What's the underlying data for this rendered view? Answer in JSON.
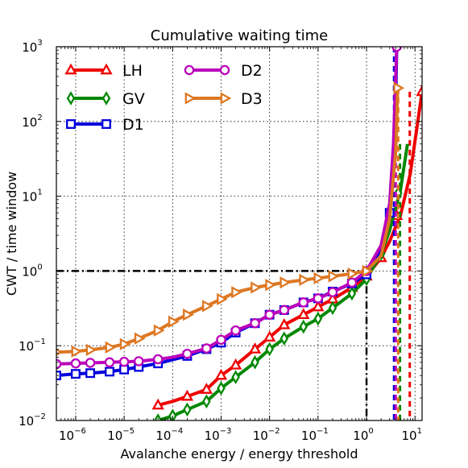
{
  "chart_data": {
    "type": "line",
    "title": "Cumulative waiting time",
    "xlabel": "Avalanche energy / energy threshold",
    "ylabel": "CWT / time window",
    "x_scale": "log",
    "y_scale": "log",
    "xlim": [
      4e-07,
      14
    ],
    "ylim": [
      0.01,
      1000
    ],
    "grid": true,
    "legend_position": "top-left",
    "x_ticks": [
      {
        "value": 1e-06,
        "base": "10",
        "exp": "−6"
      },
      {
        "value": 1e-05,
        "base": "10",
        "exp": "−5"
      },
      {
        "value": 0.0001,
        "base": "10",
        "exp": "−4"
      },
      {
        "value": 0.001,
        "base": "10",
        "exp": "−3"
      },
      {
        "value": 0.01,
        "base": "10",
        "exp": "−2"
      },
      {
        "value": 0.1,
        "base": "10",
        "exp": "−1"
      },
      {
        "value": 1,
        "base": "10",
        "exp": "0"
      },
      {
        "value": 10,
        "base": "10",
        "exp": "1"
      }
    ],
    "y_ticks": [
      {
        "value": 0.01,
        "base": "10",
        "exp": "−2"
      },
      {
        "value": 0.1,
        "base": "10",
        "exp": "−1"
      },
      {
        "value": 1,
        "base": "10",
        "exp": "0"
      },
      {
        "value": 10,
        "base": "10",
        "exp": "1"
      },
      {
        "value": 100,
        "base": "10",
        "exp": "2"
      },
      {
        "value": 1000,
        "base": "10",
        "exp": "3"
      }
    ],
    "reference_lines": [
      {
        "type": "horizontal",
        "y": 1,
        "x_to": 1,
        "color": "#000000",
        "style": "dashdot"
      },
      {
        "type": "vertical",
        "x": 1,
        "y_to": 1,
        "color": "#000000",
        "style": "dashdot"
      }
    ],
    "series": [
      {
        "name": "LH",
        "color": "#ee0000",
        "marker": "triangle-up",
        "x": [
          5e-05,
          0.0001,
          0.0002,
          0.0005,
          0.001,
          0.002,
          0.005,
          0.01,
          0.02,
          0.05,
          0.1,
          0.2,
          0.5,
          1,
          2,
          3,
          5,
          8,
          14
        ],
        "y": [
          0.016,
          0.018,
          0.021,
          0.026,
          0.04,
          0.055,
          0.09,
          0.13,
          0.19,
          0.26,
          0.33,
          0.42,
          0.6,
          0.85,
          1.5,
          2.5,
          5.5,
          20,
          250
        ],
        "markers_x": [
          5e-05,
          0.0002,
          0.0005,
          0.001,
          0.002,
          0.005,
          0.01,
          0.02,
          0.05,
          0.1,
          0.2,
          0.5,
          1,
          2,
          4.2,
          14
        ],
        "markers_y": [
          0.016,
          0.021,
          0.026,
          0.04,
          0.055,
          0.09,
          0.13,
          0.19,
          0.26,
          0.33,
          0.42,
          0.6,
          0.85,
          1.5,
          5.5,
          250
        ],
        "cutoff_x": 7.8
      },
      {
        "name": "GV",
        "color": "#008800",
        "marker": "diamond",
        "x": [
          5e-05,
          0.0001,
          0.0002,
          0.0005,
          0.001,
          0.002,
          0.005,
          0.01,
          0.02,
          0.05,
          0.1,
          0.2,
          0.5,
          1,
          2,
          3,
          5,
          7
        ],
        "y": [
          0.01,
          0.0115,
          0.014,
          0.018,
          0.027,
          0.038,
          0.06,
          0.09,
          0.125,
          0.18,
          0.23,
          0.32,
          0.5,
          0.78,
          1.7,
          3.5,
          12,
          50
        ],
        "markers_x": [
          5e-05,
          0.0001,
          0.0002,
          0.0005,
          0.001,
          0.002,
          0.005,
          0.01,
          0.02,
          0.05,
          0.1,
          0.2,
          0.5,
          1,
          2,
          4.5
        ],
        "markers_y": [
          0.01,
          0.0115,
          0.014,
          0.018,
          0.027,
          0.038,
          0.06,
          0.09,
          0.125,
          0.18,
          0.23,
          0.32,
          0.5,
          0.78,
          1.7,
          11
        ],
        "cutoff_x": 4.9
      },
      {
        "name": "D1",
        "color": "#0000dd",
        "marker": "square",
        "x": [
          4e-07,
          1e-06,
          2e-06,
          5e-06,
          1e-05,
          2e-05,
          5e-05,
          0.0001,
          0.0002,
          0.0005,
          0.001,
          0.002,
          0.005,
          0.01,
          0.02,
          0.05,
          0.1,
          0.2,
          0.5,
          1,
          2,
          3,
          3.5,
          4,
          4.2
        ],
        "y": [
          0.04,
          0.042,
          0.043,
          0.045,
          0.048,
          0.052,
          0.058,
          0.065,
          0.073,
          0.09,
          0.11,
          0.15,
          0.2,
          0.26,
          0.3,
          0.38,
          0.43,
          0.53,
          0.68,
          0.9,
          2,
          6,
          20,
          200,
          1000
        ],
        "markers_x": [
          4e-07,
          1e-06,
          2e-06,
          5e-06,
          1e-05,
          2e-05,
          5e-05,
          0.0002,
          0.0005,
          0.001,
          0.002,
          0.005,
          0.01,
          0.02,
          0.05,
          0.1,
          0.2,
          0.5,
          1,
          3
        ],
        "markers_y": [
          0.04,
          0.042,
          0.043,
          0.045,
          0.048,
          0.052,
          0.058,
          0.073,
          0.09,
          0.11,
          0.15,
          0.2,
          0.26,
          0.3,
          0.38,
          0.43,
          0.53,
          0.68,
          0.9,
          6
        ],
        "cutoff_x": 3.7
      },
      {
        "name": "D2",
        "color": "#bb00bb",
        "marker": "circle",
        "x": [
          4e-07,
          1e-06,
          2e-06,
          5e-06,
          1e-05,
          2e-05,
          5e-05,
          0.0001,
          0.0002,
          0.0005,
          0.001,
          0.002,
          0.005,
          0.01,
          0.02,
          0.05,
          0.1,
          0.2,
          0.5,
          1,
          2,
          3,
          3.6,
          4.2
        ],
        "y": [
          0.057,
          0.058,
          0.059,
          0.06,
          0.061,
          0.062,
          0.066,
          0.07,
          0.078,
          0.092,
          0.12,
          0.16,
          0.2,
          0.26,
          0.3,
          0.38,
          0.43,
          0.52,
          0.7,
          1.0,
          2.2,
          8,
          50,
          1000
        ],
        "markers_x": [
          4e-07,
          1e-06,
          2e-06,
          5e-06,
          1e-05,
          2e-05,
          5e-05,
          0.0002,
          0.0005,
          0.001,
          0.002,
          0.005,
          0.01,
          0.02,
          0.05,
          0.1,
          0.2,
          0.5,
          1,
          4.2
        ],
        "markers_y": [
          0.057,
          0.058,
          0.059,
          0.06,
          0.061,
          0.062,
          0.066,
          0.078,
          0.092,
          0.12,
          0.16,
          0.2,
          0.26,
          0.3,
          0.38,
          0.43,
          0.52,
          0.7,
          1.0,
          1000
        ],
        "cutoff_x": 4.0
      },
      {
        "name": "D3",
        "color": "#dd7722",
        "marker": "triangle-right",
        "x": [
          4e-07,
          1e-06,
          2e-06,
          5e-06,
          1e-05,
          2e-05,
          5e-05,
          0.0001,
          0.0002,
          0.0005,
          0.001,
          0.002,
          0.005,
          0.01,
          0.02,
          0.05,
          0.1,
          0.2,
          0.5,
          1,
          2,
          3,
          4,
          4.4
        ],
        "y": [
          0.082,
          0.084,
          0.088,
          0.095,
          0.105,
          0.125,
          0.16,
          0.21,
          0.26,
          0.34,
          0.42,
          0.52,
          0.6,
          0.65,
          0.7,
          0.76,
          0.8,
          0.85,
          0.92,
          1.0,
          1.6,
          5,
          40,
          280
        ],
        "markers_x": [
          4e-07,
          1e-06,
          2e-06,
          5e-06,
          1e-05,
          2e-05,
          5e-05,
          0.0001,
          0.0002,
          0.0005,
          0.001,
          0.002,
          0.005,
          0.01,
          0.02,
          0.05,
          0.1,
          0.2,
          0.5,
          1,
          4.4
        ],
        "markers_y": [
          0.082,
          0.084,
          0.088,
          0.095,
          0.105,
          0.125,
          0.16,
          0.21,
          0.26,
          0.34,
          0.42,
          0.52,
          0.6,
          0.65,
          0.7,
          0.76,
          0.8,
          0.85,
          0.92,
          1.0,
          280
        ],
        "cutoff_x": 4.5
      }
    ]
  }
}
